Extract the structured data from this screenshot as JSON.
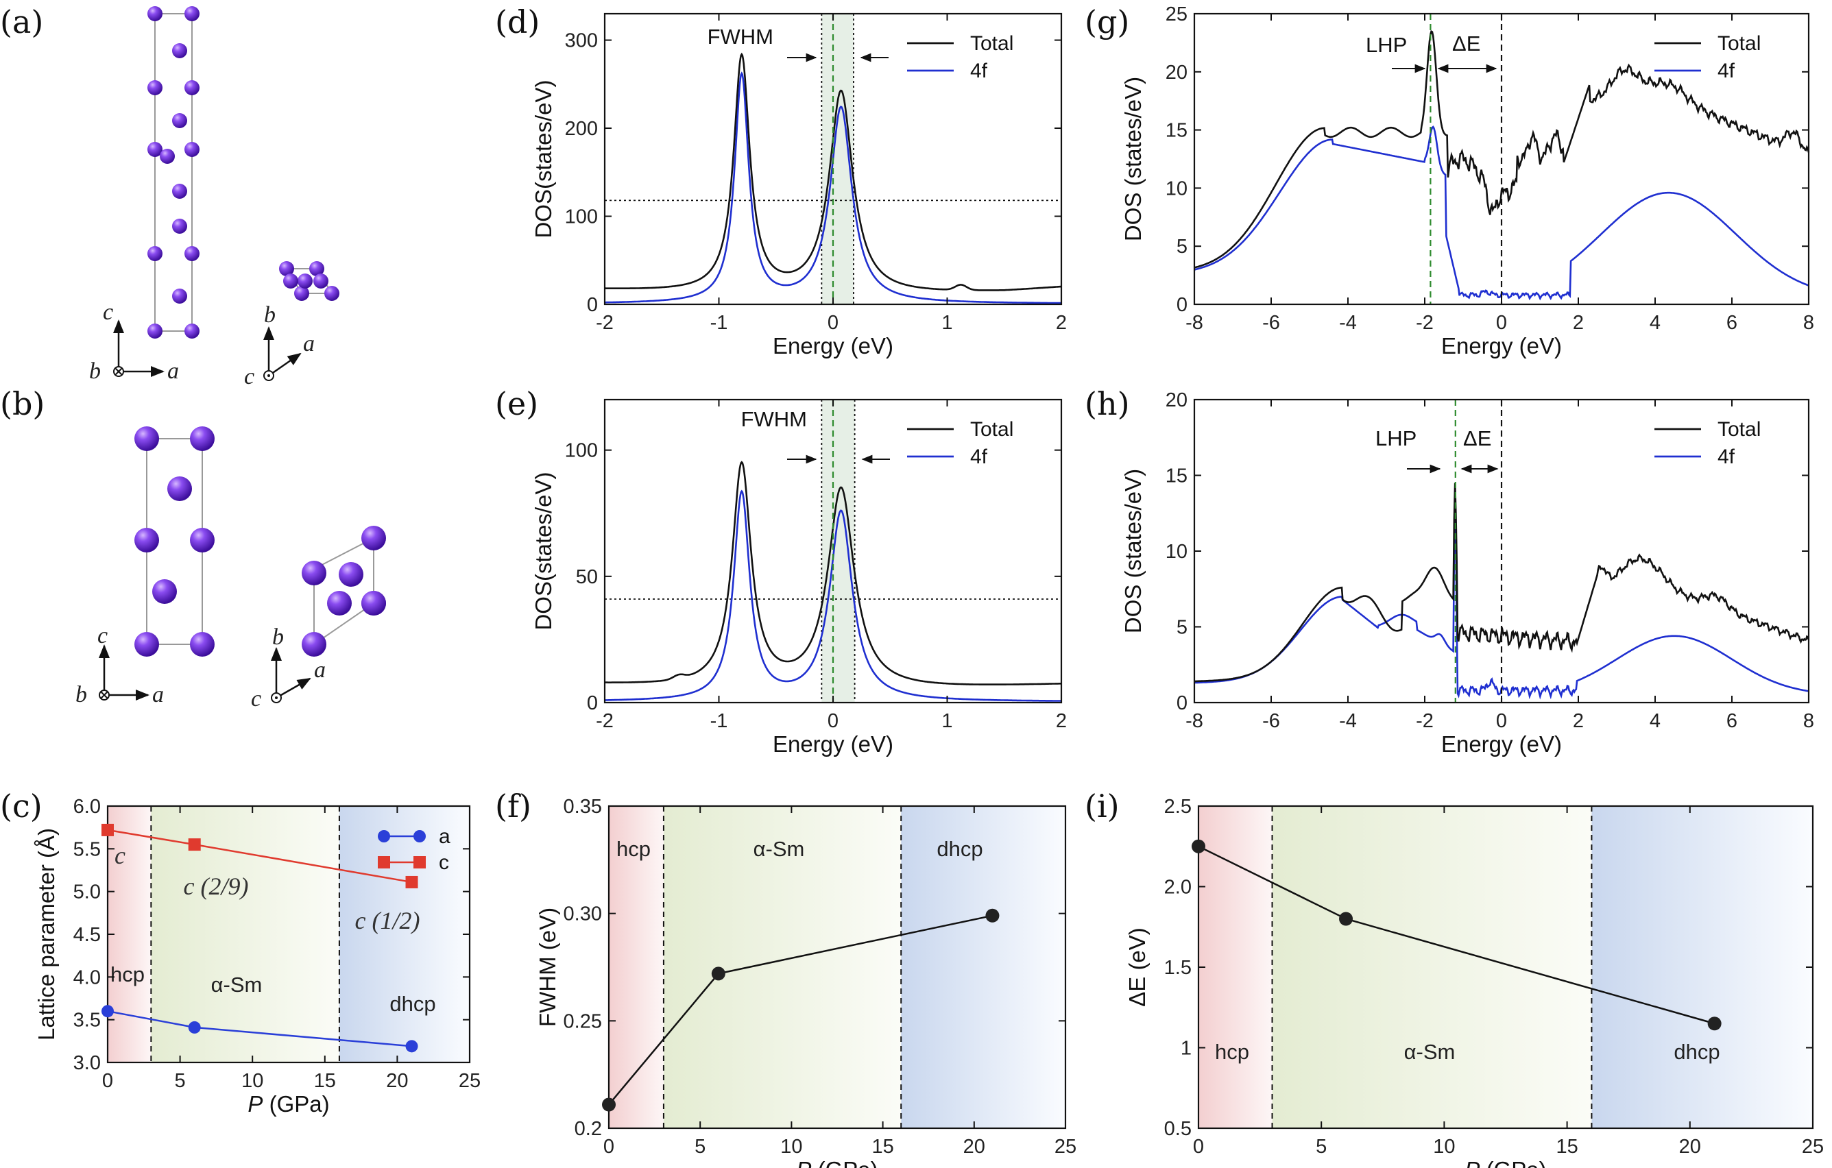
{
  "panel_labels": [
    "(a)",
    "(b)",
    "(c)",
    "(d)",
    "(e)",
    "(f)",
    "(g)",
    "(h)",
    "(i)"
  ],
  "crystal": {
    "axes_a_side": {
      "c": "c",
      "b": "b",
      "a": "a"
    },
    "axes_a_top": {
      "b": "b",
      "c": "c",
      "a": "a"
    },
    "atom_color": "#6a2fd4"
  },
  "colors": {
    "total": "#111111",
    "f4": "#1f2fd0",
    "a_series": "#2a3fd8",
    "c_series": "#e03a2e",
    "hcp_bg": "#f7dada",
    "alpha_bg": "#e8efd8",
    "dhcp_bg": "#cfdcef",
    "fermi_line": "#2e8b2e"
  },
  "chart_data": [
    {
      "id": "c",
      "type": "line",
      "xlabel": "P (GPa)",
      "ylabel": "Lattice parameter (Å)",
      "xlim": [
        0,
        25
      ],
      "ylim": [
        3.0,
        6.0
      ],
      "xticks": [
        0,
        5,
        10,
        15,
        20,
        25
      ],
      "yticks": [
        3.0,
        3.5,
        4.0,
        4.5,
        5.0,
        5.5,
        6.0
      ],
      "xtick_labels": [
        "0",
        "5",
        "10",
        "15",
        "20",
        "25"
      ],
      "ytick_labels": [
        "3.0",
        "3.5",
        "4.0",
        "4.5",
        "5.0",
        "5.5",
        "6.0"
      ],
      "phases": [
        {
          "name": "hcp",
          "range": [
            0,
            3
          ]
        },
        {
          "name": "α-Sm",
          "range": [
            3,
            16
          ]
        },
        {
          "name": "dhcp",
          "range": [
            16,
            25
          ]
        }
      ],
      "series": [
        {
          "name": "a",
          "x": [
            0,
            6,
            21
          ],
          "values": [
            3.6,
            3.41,
            3.19
          ]
        },
        {
          "name": "c",
          "x": [
            0,
            6,
            21
          ],
          "values": [
            5.72,
            5.55,
            5.11
          ]
        }
      ],
      "annotations": [
        "c",
        "c (2/9)",
        "c (1/2)"
      ]
    },
    {
      "id": "d",
      "type": "line",
      "xlabel": "Energy (eV)",
      "ylabel": "DOS(states/eV)",
      "xlim": [
        -2,
        2
      ],
      "ylim": [
        0,
        330
      ],
      "xticks": [
        -2,
        -1,
        0,
        1,
        2
      ],
      "yticks": [
        0,
        100,
        200,
        300
      ],
      "xtick_labels": [
        "-2",
        "-1",
        "0",
        "1",
        "2"
      ],
      "ytick_labels": [
        "0",
        "100",
        "200",
        "300"
      ],
      "half_max": 118,
      "fwhm_edges": [
        -0.1,
        0.18
      ],
      "fermi": 0,
      "annotation": "FWHM",
      "legend": [
        "Total",
        "4f"
      ]
    },
    {
      "id": "e",
      "type": "line",
      "xlabel": "Energy (eV)",
      "ylabel": "DOS(states/eV)",
      "xlim": [
        -2,
        2
      ],
      "ylim": [
        0,
        120
      ],
      "xticks": [
        -2,
        -1,
        0,
        1,
        2
      ],
      "yticks": [
        0,
        50,
        100
      ],
      "xtick_labels": [
        "-2",
        "-1",
        "0",
        "1",
        "2"
      ],
      "ytick_labels": [
        "0",
        "50",
        "100"
      ],
      "half_max": 41,
      "fwhm_edges": [
        -0.1,
        0.19
      ],
      "fermi": 0,
      "annotation": "FWHM",
      "legend": [
        "Total",
        "4f"
      ]
    },
    {
      "id": "f",
      "type": "line",
      "xlabel": "P (GPa)",
      "ylabel": "FWHM (eV)",
      "xlim": [
        0,
        25
      ],
      "ylim": [
        0.2,
        0.35
      ],
      "xticks": [
        0,
        5,
        10,
        15,
        20,
        25
      ],
      "yticks": [
        0.2,
        0.25,
        0.3,
        0.35
      ],
      "xtick_labels": [
        "0",
        "5",
        "10",
        "15",
        "20",
        "25"
      ],
      "ytick_labels": [
        "0.2",
        "0.25",
        "0.30",
        "0.35"
      ],
      "phases": [
        {
          "name": "hcp",
          "range": [
            0,
            3
          ]
        },
        {
          "name": "α-Sm",
          "range": [
            3,
            16
          ]
        },
        {
          "name": "dhcp",
          "range": [
            16,
            25
          ]
        }
      ],
      "series": [
        {
          "name": "FWHM",
          "x": [
            0,
            6,
            21
          ],
          "values": [
            0.211,
            0.272,
            0.299
          ]
        }
      ]
    },
    {
      "id": "g",
      "type": "line",
      "xlabel": "Energy (eV)",
      "ylabel": "DOS (states/eV)",
      "xlim": [
        -8,
        8
      ],
      "ylim": [
        0,
        25
      ],
      "xticks": [
        -8,
        -6,
        -4,
        -2,
        0,
        2,
        4,
        6,
        8
      ],
      "yticks": [
        0,
        5,
        10,
        15,
        20,
        25
      ],
      "xtick_labels": [
        "-8",
        "-6",
        "-4",
        "-2",
        "0",
        "2",
        "4",
        "6",
        "8"
      ],
      "ytick_labels": [
        "0",
        "5",
        "10",
        "15",
        "20",
        "25"
      ],
      "lhp": -1.85,
      "fermi": 0,
      "annotations": [
        "LHP",
        "ΔE"
      ],
      "legend": [
        "Total",
        "4f"
      ]
    },
    {
      "id": "h",
      "type": "line",
      "xlabel": "Energy (eV)",
      "ylabel": "DOS (states/eV)",
      "xlim": [
        -8,
        8
      ],
      "ylim": [
        0,
        20
      ],
      "xticks": [
        -8,
        -6,
        -4,
        -2,
        0,
        2,
        4,
        6,
        8
      ],
      "yticks": [
        0,
        5,
        10,
        15,
        20
      ],
      "xtick_labels": [
        "-8",
        "-6",
        "-4",
        "-2",
        "0",
        "2",
        "4",
        "6",
        "8"
      ],
      "ytick_labels": [
        "0",
        "5",
        "10",
        "15",
        "20"
      ],
      "lhp": -1.2,
      "fermi": 0,
      "annotations": [
        "LHP",
        "ΔE"
      ],
      "legend": [
        "Total",
        "4f"
      ]
    },
    {
      "id": "i",
      "type": "line",
      "xlabel": "P (GPa)",
      "ylabel": "ΔE (eV)",
      "xlim": [
        0,
        25
      ],
      "ylim": [
        0.5,
        2.5
      ],
      "xticks": [
        0,
        5,
        10,
        15,
        20,
        25
      ],
      "yticks": [
        0.5,
        1.0,
        1.5,
        2.0,
        2.5
      ],
      "xtick_labels": [
        "0",
        "5",
        "10",
        "15",
        "20",
        "25"
      ],
      "ytick_labels": [
        "0.5",
        "1",
        "1.5",
        "2.0",
        "2.5"
      ],
      "phases": [
        {
          "name": "hcp",
          "range": [
            0,
            3
          ]
        },
        {
          "name": "α-Sm",
          "range": [
            3,
            16
          ]
        },
        {
          "name": "dhcp",
          "range": [
            16,
            25
          ]
        }
      ],
      "series": [
        {
          "name": "ΔE",
          "x": [
            0,
            6,
            21
          ],
          "values": [
            2.25,
            1.8,
            1.15
          ]
        }
      ]
    }
  ]
}
